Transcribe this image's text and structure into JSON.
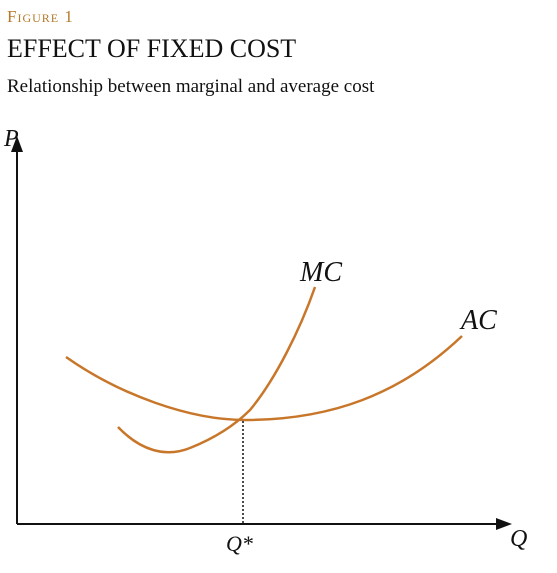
{
  "header": {
    "label": "Figure 1",
    "title": "EFFECT OF FIXED COST",
    "subtitle": "Relationship between marginal and average cost"
  },
  "axes": {
    "y_label": "P",
    "x_label": "Q"
  },
  "curves": {
    "mc": "MC",
    "ac": "AC"
  },
  "marker": {
    "label": "Q*"
  }
}
